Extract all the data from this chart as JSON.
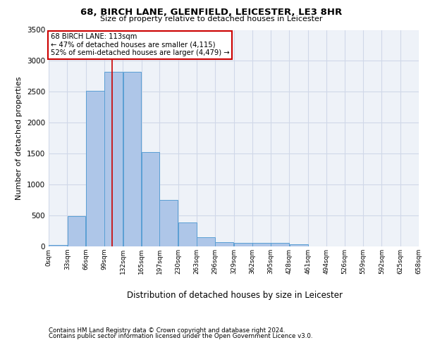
{
  "title1": "68, BIRCH LANE, GLENFIELD, LEICESTER, LE3 8HR",
  "title2": "Size of property relative to detached houses in Leicester",
  "xlabel": "Distribution of detached houses by size in Leicester",
  "ylabel": "Number of detached properties",
  "footnote1": "Contains HM Land Registry data © Crown copyright and database right 2024.",
  "footnote2": "Contains public sector information licensed under the Open Government Licence v3.0.",
  "bar_left_edges": [
    0,
    33,
    66,
    99,
    132,
    165,
    197,
    230,
    263,
    296,
    329,
    362,
    395,
    428,
    461,
    494,
    526,
    559,
    592,
    625
  ],
  "bar_widths": [
    33,
    33,
    33,
    33,
    33,
    32,
    33,
    33,
    33,
    33,
    33,
    33,
    33,
    33,
    33,
    32,
    33,
    33,
    33,
    33
  ],
  "bar_heights": [
    25,
    490,
    2510,
    2820,
    2820,
    1520,
    750,
    390,
    145,
    70,
    55,
    55,
    55,
    30,
    5,
    5,
    5,
    5,
    5,
    5
  ],
  "bar_color": "#aec6e8",
  "bar_edgecolor": "#5a9fd4",
  "grid_color": "#d0d8e8",
  "bg_color": "#eef2f8",
  "property_line_x": 113,
  "property_line_color": "#cc0000",
  "annotation_text": "68 BIRCH LANE: 113sqm\n← 47% of detached houses are smaller (4,115)\n52% of semi-detached houses are larger (4,479) →",
  "annotation_box_color": "#ffffff",
  "annotation_box_edgecolor": "#cc0000",
  "xlim": [
    0,
    658
  ],
  "ylim": [
    0,
    3500
  ],
  "yticks": [
    0,
    500,
    1000,
    1500,
    2000,
    2500,
    3000,
    3500
  ],
  "xtick_labels": [
    "0sqm",
    "33sqm",
    "66sqm",
    "99sqm",
    "132sqm",
    "165sqm",
    "197sqm",
    "230sqm",
    "263sqm",
    "296sqm",
    "329sqm",
    "362sqm",
    "395sqm",
    "428sqm",
    "461sqm",
    "494sqm",
    "526sqm",
    "559sqm",
    "592sqm",
    "625sqm",
    "658sqm"
  ],
  "xtick_positions": [
    0,
    33,
    66,
    99,
    132,
    165,
    197,
    230,
    263,
    296,
    329,
    362,
    395,
    428,
    461,
    494,
    526,
    559,
    592,
    625,
    658
  ]
}
